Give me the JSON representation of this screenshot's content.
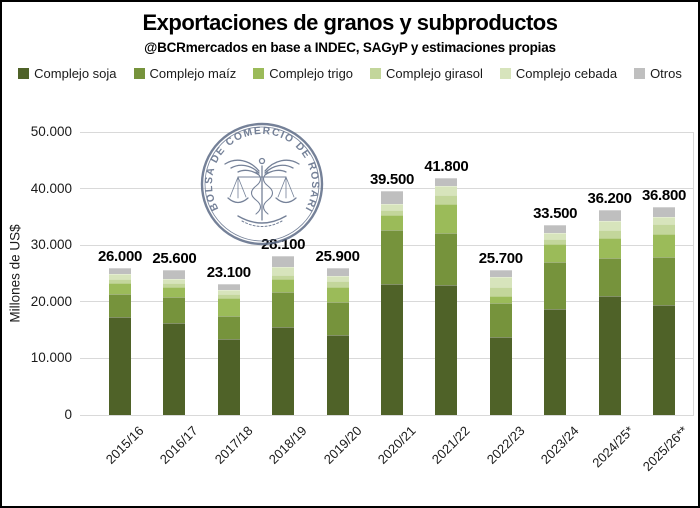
{
  "header": {
    "title": "Exportaciones de granos y subproductos",
    "subtitle": "@BCRmercados en base a INDEC, SAGyP y estimaciones propias"
  },
  "watermark": {
    "text": "BOLSA DE COMERCIO DE ROSARIO",
    "color": "#5d6c87"
  },
  "chart_data": {
    "type": "bar",
    "stacked": true,
    "title": "Exportaciones de granos y subproductos",
    "subtitle": "@BCRmercados en base a INDEC, SAGyP y estimaciones propias",
    "ylabel": "Millones de US$",
    "ylim": [
      0,
      50000
    ],
    "ytick_labels": [
      "0",
      "10.000",
      "20.000",
      "30.000",
      "40.000",
      "50.000"
    ],
    "grid": true,
    "legend_position": "top",
    "categories": [
      "2015/16",
      "2016/17",
      "2017/18",
      "2018/19",
      "2019/20",
      "2020/21",
      "2021/22",
      "2022/23",
      "2023/24",
      "2024/25*",
      "2025/26**"
    ],
    "total_labels": [
      "26.000",
      "25.600",
      "23.100",
      "28.100",
      "25.900",
      "39.500",
      "41.800",
      "25.700",
      "33.500",
      "36.200",
      "36.800"
    ],
    "totals": [
      26000,
      25600,
      23100,
      28100,
      25900,
      39500,
      41800,
      25700,
      33500,
      36200,
      36800
    ],
    "series": [
      {
        "name": "Complejo soja",
        "color": "#4F6228",
        "values": [
          17400,
          16300,
          13500,
          15600,
          14200,
          23200,
          23000,
          13800,
          18800,
          21100,
          19500
        ]
      },
      {
        "name": "Complejo maíz",
        "color": "#76933C",
        "values": [
          3900,
          4600,
          4000,
          6200,
          5800,
          9500,
          9100,
          5900,
          8200,
          6700,
          8500
        ]
      },
      {
        "name": "Complejo trigo",
        "color": "#9BBB59",
        "values": [
          2000,
          1800,
          3200,
          2300,
          2700,
          2700,
          5200,
          1400,
          3200,
          3400,
          3900
        ]
      },
      {
        "name": "Complejo girasol",
        "color": "#C3D69B",
        "values": [
          700,
          700,
          600,
          700,
          1000,
          900,
          1600,
          1600,
          900,
          1500,
          1900
        ]
      },
      {
        "name": "Complejo cebada",
        "color": "#D7E4BC",
        "values": [
          900,
          700,
          700,
          1400,
          900,
          1000,
          1600,
          1600,
          1000,
          1600,
          1200
        ]
      },
      {
        "name": "Otros",
        "color": "#BFBFBF",
        "values": [
          1100,
          1500,
          1100,
          1900,
          1300,
          2200,
          1300,
          1400,
          1400,
          1900,
          1800
        ]
      }
    ]
  }
}
